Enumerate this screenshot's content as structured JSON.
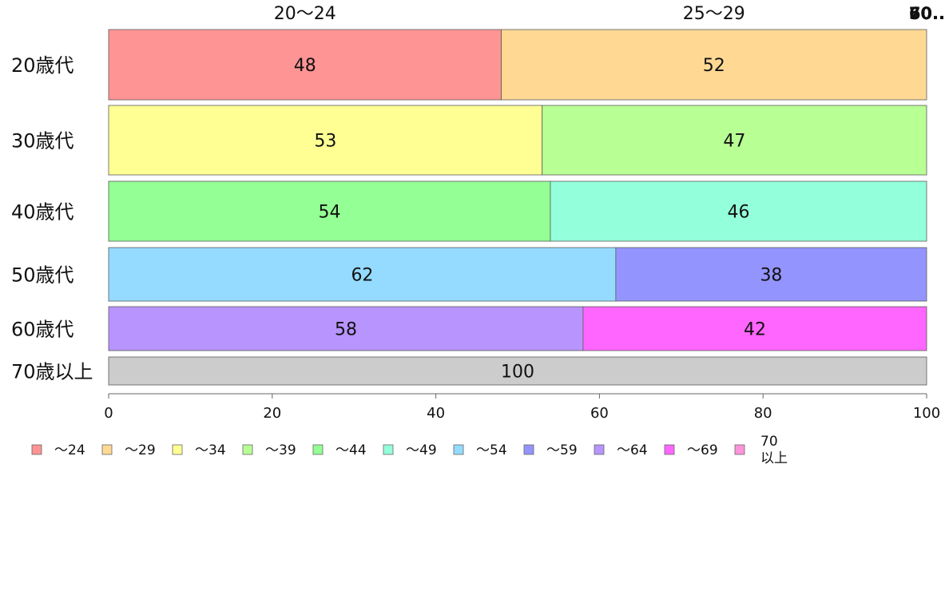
{
  "chart_data": {
    "type": "bar",
    "orientation": "horizontal",
    "stacked": true,
    "percent": true,
    "categories": [
      "20歳代",
      "30歳代",
      "40歳代",
      "50歳代",
      "60歳代",
      "70歳以上"
    ],
    "segments": [
      [
        {
          "group": "～24",
          "value": 48
        },
        {
          "group": "～29",
          "value": 52
        }
      ],
      [
        {
          "group": "～34",
          "value": 53
        },
        {
          "group": "～39",
          "value": 47
        }
      ],
      [
        {
          "group": "～44",
          "value": 54
        },
        {
          "group": "～49",
          "value": 46
        }
      ],
      [
        {
          "group": "～54",
          "value": 62
        },
        {
          "group": "～59",
          "value": 38
        }
      ],
      [
        {
          "group": "～64",
          "value": 58
        },
        {
          "group": "～69",
          "value": 42
        }
      ],
      [
        {
          "group": "70以上",
          "value": 100
        }
      ]
    ],
    "top_labels": [
      "20～24",
      "25～29",
      "50..",
      "60..",
      "70.."
    ],
    "xlim": [
      0,
      100
    ],
    "xticks": [
      0,
      20,
      40,
      60,
      80,
      100
    ],
    "xlabel": "",
    "ylabel": "",
    "grid": false,
    "legend_position": "bottom",
    "legend": [
      {
        "label": "～24",
        "color": "#FF9494"
      },
      {
        "label": "～29",
        "color": "#FFD994"
      },
      {
        "label": "～34",
        "color": "#FFFF94"
      },
      {
        "label": "～39",
        "color": "#B8FF94"
      },
      {
        "label": "～44",
        "color": "#94FF94"
      },
      {
        "label": "～49",
        "color": "#94FFDB"
      },
      {
        "label": "～54",
        "color": "#94DBFF"
      },
      {
        "label": "～59",
        "color": "#9494FF"
      },
      {
        "label": "～64",
        "color": "#B894FF"
      },
      {
        "label": "～69",
        "color": "#FF66FF"
      },
      {
        "label": "70\n以上",
        "color": "#FF94DB"
      }
    ]
  }
}
